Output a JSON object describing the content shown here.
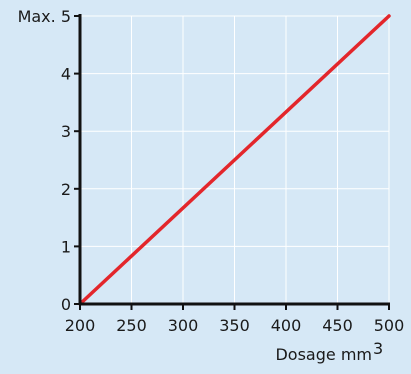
{
  "colors": {
    "background": "#d6e8f6",
    "grid": "#ffffff",
    "axis": "#111111",
    "line": "#e3262b"
  },
  "chart_data": {
    "type": "line",
    "title": "",
    "xlabel": "Dosage mm",
    "xlabel_superscript": "3",
    "ylabel": "",
    "x_ticks": [
      "200",
      "250",
      "300",
      "350",
      "400",
      "450",
      "500"
    ],
    "y_ticks": [
      "0",
      "1",
      "2",
      "3",
      "4",
      "Max. 5"
    ],
    "xlim": [
      200,
      500
    ],
    "ylim": [
      0,
      5
    ],
    "grid": true,
    "legend": "none",
    "series": [
      {
        "x": [
          200,
          500
        ],
        "y": [
          0,
          5
        ]
      }
    ]
  }
}
